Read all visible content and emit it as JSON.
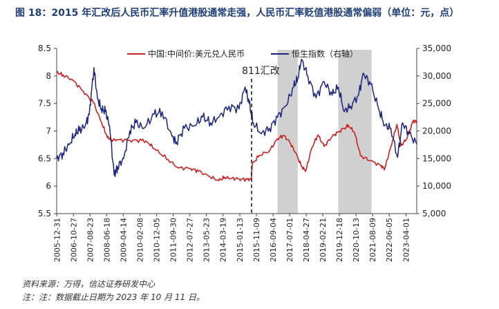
{
  "figure": {
    "title": "图 18：2015 年汇改后人民币汇率升值港股通常走强，人民币汇率贬值港股通常偏弱（单位：元，点）",
    "source_note": "资料来源：万得，信达证券研发中心",
    "date_note": "注：注：数据截止日期为 2023 年 10 月 11 日。"
  },
  "chart_data": {
    "type": "line",
    "title": "",
    "series": [
      {
        "name": "中国:中间价:美元兑人民币",
        "axis": "left",
        "color": "#cc1f1f",
        "t": [
          2005.99,
          2006.3,
          2006.8,
          2007.3,
          2007.8,
          2008.2,
          2008.5,
          2008.7,
          2009.0,
          2009.6,
          2010.2,
          2010.5,
          2010.9,
          2011.5,
          2012.0,
          2012.6,
          2013.0,
          2013.5,
          2014.0,
          2014.3,
          2014.6,
          2015.0,
          2015.4,
          2015.6,
          2015.65,
          2016.0,
          2016.5,
          2016.9,
          2017.2,
          2017.5,
          2017.8,
          2018.1,
          2018.3,
          2018.6,
          2018.9,
          2019.2,
          2019.6,
          2019.9,
          2020.3,
          2020.4,
          2020.7,
          2021.0,
          2021.5,
          2022.0,
          2022.2,
          2022.5,
          2022.8,
          2023.0,
          2023.3,
          2023.6,
          2023.78
        ],
        "values": [
          8.06,
          8.02,
          7.92,
          7.72,
          7.52,
          7.16,
          6.88,
          6.84,
          6.84,
          6.83,
          6.83,
          6.79,
          6.65,
          6.48,
          6.33,
          6.32,
          6.27,
          6.18,
          6.1,
          6.16,
          6.14,
          6.13,
          6.12,
          6.12,
          6.39,
          6.56,
          6.64,
          6.86,
          6.92,
          6.8,
          6.6,
          6.35,
          6.28,
          6.7,
          6.93,
          6.72,
          6.9,
          6.98,
          7.08,
          7.1,
          6.98,
          6.55,
          6.46,
          6.37,
          6.32,
          6.71,
          7.12,
          6.73,
          6.87,
          7.18,
          7.18
        ]
      },
      {
        "name": "恒生指数（右轴）",
        "axis": "right",
        "color": "#1a237e",
        "t": [
          2005.99,
          2006.3,
          2006.6,
          2006.9,
          2007.1,
          2007.4,
          2007.6,
          2007.83,
          2008.0,
          2008.2,
          2008.4,
          2008.6,
          2008.83,
          2009.0,
          2009.3,
          2009.6,
          2009.9,
          2010.3,
          2010.8,
          2011.2,
          2011.7,
          2011.9,
          2012.3,
          2012.8,
          2013.2,
          2013.6,
          2014.0,
          2014.5,
          2015.0,
          2015.3,
          2015.5,
          2015.7,
          2016.1,
          2016.5,
          2016.9,
          2017.3,
          2017.7,
          2017.9,
          2018.08,
          2018.4,
          2018.8,
          2019.2,
          2019.6,
          2019.9,
          2020.2,
          2020.5,
          2020.9,
          2021.15,
          2021.5,
          2021.9,
          2022.2,
          2022.5,
          2022.83,
          2023.08,
          2023.4,
          2023.78
        ],
        "values": [
          15000,
          16000,
          17500,
          19500,
          20000,
          21000,
          23000,
          31500,
          26000,
          24000,
          23500,
          21000,
          12000,
          13500,
          15000,
          20000,
          21500,
          20500,
          23000,
          23500,
          19000,
          18000,
          20500,
          21000,
          22500,
          21500,
          22500,
          24500,
          24000,
          28000,
          25000,
          21500,
          19500,
          20500,
          22500,
          24500,
          28000,
          29500,
          33000,
          30000,
          26000,
          29000,
          26500,
          28000,
          23500,
          24500,
          26500,
          30500,
          28500,
          24000,
          21000,
          20500,
          15200,
          21500,
          19500,
          17600
        ]
      }
    ],
    "x_tick_labels": [
      "2005-12-31",
      "2006-10-27",
      "2007-08-23",
      "2008-06-18",
      "2009-04-14",
      "2010-02-08",
      "2010-12-05",
      "2011-09-30",
      "2012-07-27",
      "2013-05-23",
      "2014-03-19",
      "2015-01-13",
      "2015-11-09",
      "2016-09-04",
      "2017-07-01",
      "2018-04-27",
      "2019-02-21",
      "2019-12-18",
      "2020-10-13",
      "2021-08-09",
      "2022-06-05",
      "2023-04-01"
    ],
    "x_tick_t": [
      2006.0,
      2006.82,
      2007.64,
      2008.46,
      2009.28,
      2010.1,
      2010.93,
      2011.75,
      2012.57,
      2013.39,
      2014.21,
      2015.04,
      2015.86,
      2016.68,
      2017.5,
      2018.32,
      2019.14,
      2019.96,
      2020.78,
      2021.6,
      2022.42,
      2023.25
    ],
    "x_range": [
      2005.99,
      2023.78
    ],
    "y_left": {
      "range": [
        5.5,
        8.5
      ],
      "ticks": [
        5.5,
        6,
        6.5,
        7,
        7.5,
        8,
        8.5
      ],
      "tick_labels": [
        "5.5",
        "6",
        "6.5",
        "7",
        "7.5",
        "8",
        "8.5"
      ]
    },
    "y_right": {
      "range": [
        5000,
        35000
      ],
      "ticks": [
        5000,
        10000,
        15000,
        20000,
        25000,
        30000,
        35000
      ],
      "tick_labels": [
        "5,000",
        "10,000",
        "15,000",
        "20,000",
        "25,000",
        "30,000",
        "35,000"
      ]
    },
    "shaded_periods": [
      [
        2016.9,
        2017.9
      ],
      [
        2019.9,
        2021.55
      ]
    ],
    "shade_color": "#d0d0d0",
    "annotation": {
      "text": "811汇改",
      "t": 2015.62
    },
    "legend_placement": "top"
  }
}
